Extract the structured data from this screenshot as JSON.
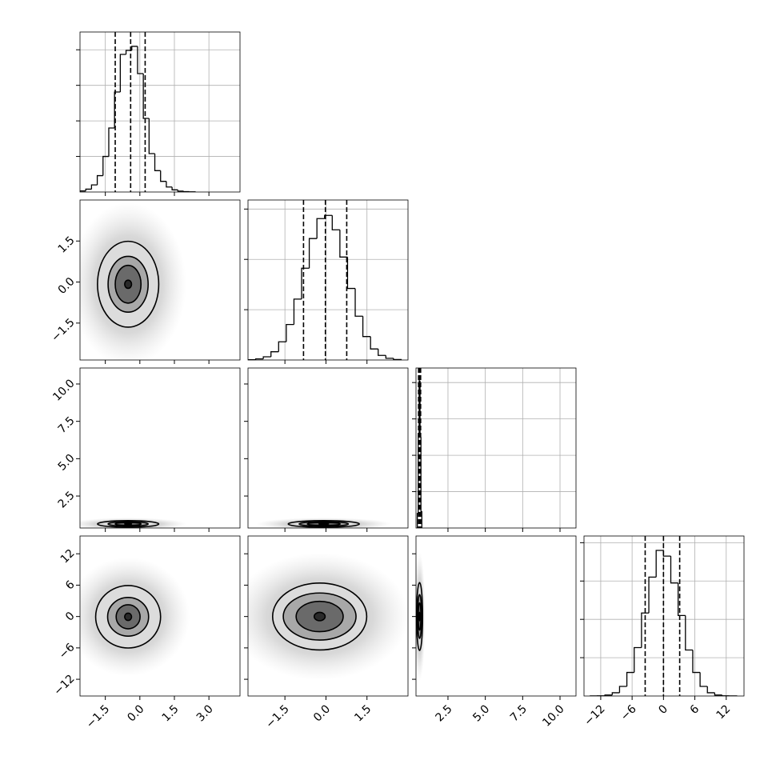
{
  "chart_data": {
    "type": "corner",
    "color": "#000000",
    "grid": true,
    "params": [
      {
        "lim": [
          -2.6,
          4.35
        ],
        "ticks": [
          {
            "value": -1.5,
            "label": "−1.5"
          },
          {
            "value": 0,
            "label": "0.0"
          },
          1.5,
          {
            "value": 3,
            "label": "3.0"
          }
        ]
      },
      {
        "lim": [
          -2.85,
          3.0
        ],
        "ticks": [
          {
            "value": -1.5,
            "label": "−1.5"
          },
          {
            "value": 0,
            "label": "0.0"
          },
          1.5
        ]
      },
      {
        "lim": [
          0.36,
          11.07
        ],
        "ticks": [
          2.5,
          {
            "value": 5,
            "label": "5.0"
          },
          7.5,
          {
            "value": 10,
            "label": "10.0"
          }
        ]
      },
      {
        "lim": [
          -15.2,
          15.4
        ],
        "ticks": [
          {
            "value": -12,
            "label": "−12"
          },
          {
            "value": -6,
            "label": "−6"
          },
          0,
          6,
          12
        ]
      }
    ],
    "histograms": [
      {
        "bins": [
          -2.6,
          -2.35,
          -2.1,
          -1.85,
          -1.6,
          -1.35,
          -1.1,
          -0.85,
          -0.6,
          -0.35,
          -0.1,
          0.15,
          0.4,
          0.65,
          0.9,
          1.15,
          1.4,
          1.65,
          1.9,
          2.15,
          2.4
        ],
        "counts": [
          15,
          40,
          100,
          230,
          500,
          900,
          1406,
          1935,
          1991,
          2048,
          1665,
          1035,
          540,
          300,
          150,
          70,
          30,
          12,
          5,
          2
        ],
        "ylim": [
          0,
          2250
        ],
        "yticks": [
          500,
          1000,
          1500,
          2000
        ],
        "quantiles": [
          -1.07,
          -0.4,
          0.23
        ]
      },
      {
        "bins": [
          -2.85,
          -2.57,
          -2.29,
          -2.01,
          -1.73,
          -1.45,
          -1.17,
          -0.89,
          -0.61,
          -0.33,
          -0.05,
          0.23,
          0.51,
          0.79,
          1.07,
          1.35,
          1.63,
          1.91,
          2.19,
          2.47,
          2.75
        ],
        "counts": [
          3,
          11,
          32,
          82,
          181,
          353,
          605,
          912,
          1207,
          1405,
          1437,
          1294,
          1023,
          711,
          435,
          233,
          110,
          46,
          17,
          5
        ],
        "ylim": [
          0,
          1590
        ],
        "yticks": [
          500,
          1000,
          1500
        ],
        "quantiles": [
          -0.82,
          -0.02,
          0.76
        ]
      },
      {
        "bins": [
          0.45,
          0.51,
          0.57,
          0.63,
          0.69,
          0.75
        ],
        "counts": [
          400,
          2600,
          4050,
          2500,
          450
        ],
        "ylim": [
          0,
          4400
        ],
        "yticks": [
          1000,
          2000,
          3000,
          4000
        ],
        "quantiles": [
          0.53,
          0.6,
          0.67
        ]
      },
      {
        "bins": [
          -14,
          -12.6,
          -11.2,
          -9.8,
          -8.4,
          -7,
          -5.6,
          -4.2,
          -2.8,
          -1.4,
          0,
          1.4,
          2.8,
          4.2,
          5.6,
          7,
          8.4,
          9.8,
          11.2,
          12.6,
          14
        ],
        "counts": [
          1,
          2,
          10,
          34,
          100,
          246,
          505,
          866,
          1241,
          1520,
          1460,
          1180,
          840,
          480,
          246,
          100,
          34,
          10,
          2,
          1
        ],
        "ylim": [
          0,
          1670
        ],
        "yticks": [
          400,
          800,
          1200,
          1600
        ],
        "quantiles": [
          -3.5,
          0,
          3.1
        ]
      }
    ],
    "pairs": [
      [
        {
          "contours": [
            {
              "x": -0.51,
              "y": -0.08,
              "rx": 1.33,
              "ry": 1.57
            },
            {
              "x": -0.51,
              "y": -0.08,
              "rx": 0.87,
              "ry": 1.02
            },
            {
              "x": -0.51,
              "y": -0.08,
              "rx": 0.56,
              "ry": 0.69
            },
            {
              "x": -0.51,
              "y": -0.08,
              "rx": 0.15,
              "ry": 0.15
            }
          ]
        }
      ],
      [
        {
          "contours": [
            {
              "x": -0.51,
              "y": 0.63,
              "rx": 1.33,
              "ry": 0.22
            },
            {
              "x": -0.51,
              "y": 0.63,
              "rx": 0.87,
              "ry": 0.15
            },
            {
              "x": -0.51,
              "y": 0.63,
              "rx": 0.56,
              "ry": 0.1
            },
            {
              "x": -0.51,
              "y": 0.63,
              "rx": 0.15,
              "ry": 0.04
            }
          ]
        },
        {
          "contours": [
            {
              "x": -0.08,
              "y": 0.63,
              "rx": 1.3,
              "ry": 0.22
            },
            {
              "x": -0.08,
              "y": 0.63,
              "rx": 0.9,
              "ry": 0.15
            },
            {
              "x": -0.08,
              "y": 0.63,
              "rx": 0.6,
              "ry": 0.1
            },
            {
              "x": -0.08,
              "y": 0.63,
              "rx": 0.18,
              "ry": 0.04
            }
          ]
        }
      ],
      [
        {
          "contours": [
            {
              "x": -0.51,
              "y": -0.05,
              "rx": 1.41,
              "ry": 5.97
            },
            {
              "x": -0.51,
              "y": -0.05,
              "rx": 0.89,
              "ry": 3.7
            },
            {
              "x": -0.51,
              "y": -0.05,
              "rx": 0.52,
              "ry": 2.3
            },
            {
              "x": -0.51,
              "y": -0.05,
              "rx": 0.15,
              "ry": 0.7
            }
          ]
        },
        {
          "contours": [
            {
              "x": -0.23,
              "y": 0,
              "rx": 1.72,
              "ry": 6.4
            },
            {
              "x": -0.23,
              "y": 0,
              "rx": 1.33,
              "ry": 4.5
            },
            {
              "x": -0.23,
              "y": 0,
              "rx": 0.86,
              "ry": 2.9
            },
            {
              "x": -0.23,
              "y": 0,
              "rx": 0.2,
              "ry": 0.8
            }
          ]
        },
        {
          "contours": [
            {
              "x": 0.6,
              "y": 0,
              "rx": 0.2,
              "ry": 6.5
            },
            {
              "x": 0.6,
              "y": 0,
              "rx": 0.13,
              "ry": 4.2
            },
            {
              "x": 0.6,
              "y": 0,
              "rx": 0.09,
              "ry": 2.6
            },
            {
              "x": 0.6,
              "y": 0,
              "rx": 0.03,
              "ry": 0.8
            }
          ]
        }
      ]
    ]
  }
}
